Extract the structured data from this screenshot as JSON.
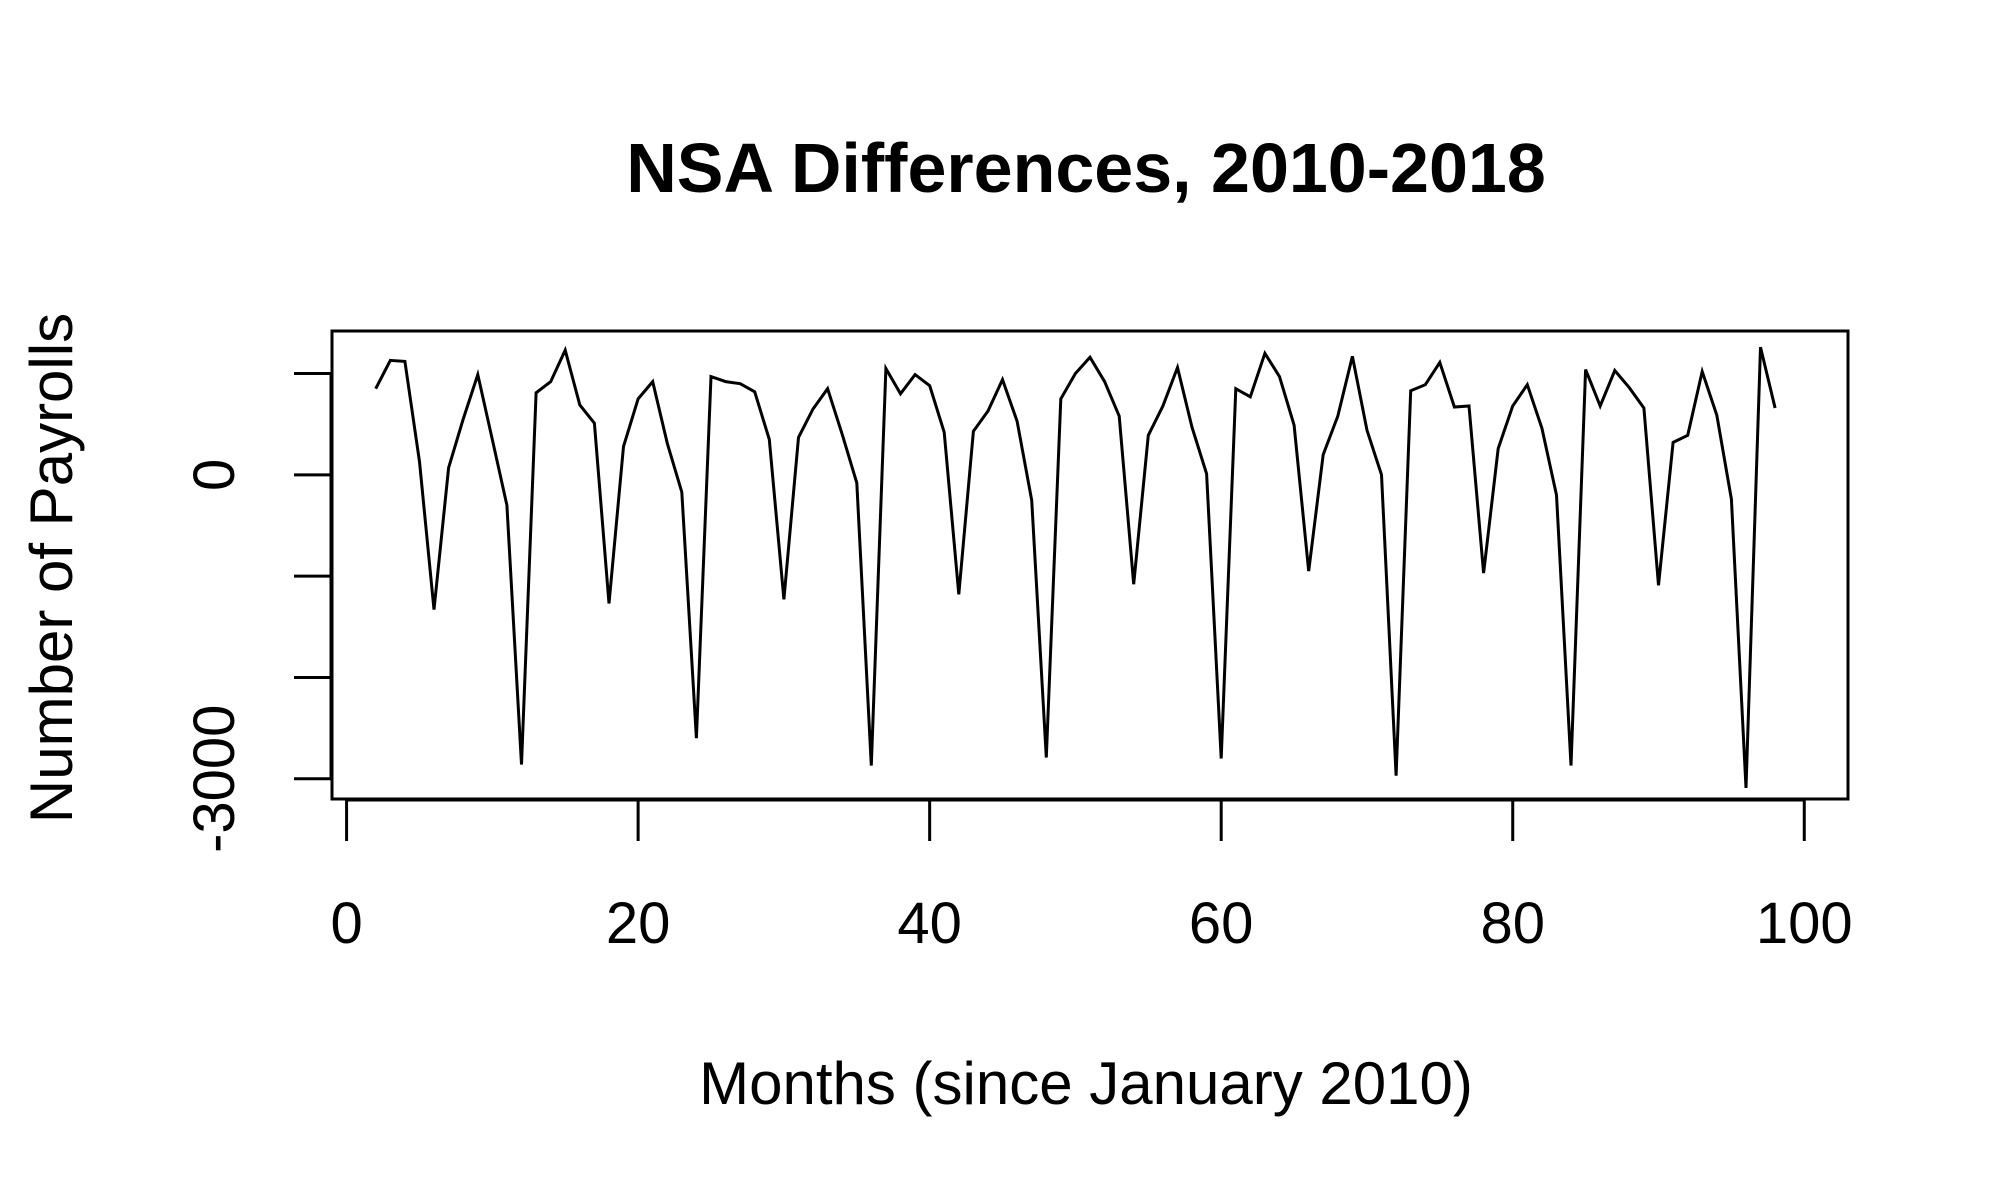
{
  "chart_data": {
    "type": "line",
    "title": "NSA Differences, 2010-2018",
    "xlabel": "Months (since January 2010)",
    "ylabel": "Number of Payrolls",
    "xlim": [
      -1,
      103
    ],
    "ylim": [
      -3200,
      1420
    ],
    "x_ticks": [
      0,
      20,
      40,
      60,
      80,
      100
    ],
    "x_tick_labels": [
      "0",
      "20",
      "40",
      "60",
      "80",
      "100"
    ],
    "y_ticks": [
      -3000,
      -2000,
      -1000,
      0,
      1000
    ],
    "y_tick_labels": [
      "-3000",
      "",
      "",
      "0",
      ""
    ],
    "grid": false,
    "legend": "none",
    "series": [
      {
        "x": [
          2,
          3,
          4,
          5,
          6,
          7,
          8,
          9,
          10,
          11,
          12,
          13,
          14,
          15,
          16,
          17,
          18,
          19,
          20,
          21,
          22,
          23,
          24,
          25,
          26,
          27,
          28,
          29,
          30,
          31,
          32,
          33,
          34,
          35,
          36,
          37,
          38,
          39,
          40,
          41,
          42,
          43,
          44,
          45,
          46,
          47,
          48,
          49,
          50,
          51,
          52,
          53,
          54,
          55,
          56,
          57,
          58,
          59,
          60,
          61,
          62,
          63,
          64,
          65,
          66,
          67,
          68,
          69,
          70,
          71,
          72,
          73,
          74,
          75,
          76,
          77,
          78,
          79,
          80,
          81,
          82,
          83,
          84,
          85,
          86,
          87,
          88,
          89,
          90,
          91,
          92,
          93,
          94,
          95,
          96,
          97,
          98
        ],
        "y": [
          850,
          1130,
          1120,
          130,
          -1330,
          70,
          550,
          990,
          350,
          -300,
          -2860,
          810,
          920,
          1230,
          690,
          510,
          -1270,
          280,
          750,
          920,
          310,
          -170,
          -2600,
          970,
          920,
          900,
          820,
          350,
          -1230,
          370,
          650,
          850,
          400,
          -80,
          -2870,
          1050,
          800,
          990,
          880,
          420,
          -1180,
          430,
          630,
          940,
          530,
          -250,
          -2790,
          750,
          1000,
          1160,
          920,
          580,
          -1080,
          390,
          680,
          1060,
          470,
          10,
          -2800,
          850,
          770,
          1200,
          970,
          490,
          -950,
          200,
          580,
          1170,
          440,
          0,
          -2970,
          830,
          890,
          1110,
          670,
          680,
          -970,
          260,
          680,
          890,
          460,
          -200,
          -2870,
          1040,
          680,
          1030,
          860,
          660,
          -1090,
          320,
          390,
          1020,
          590,
          -240,
          -3090,
          1260,
          660
        ]
      }
    ]
  }
}
